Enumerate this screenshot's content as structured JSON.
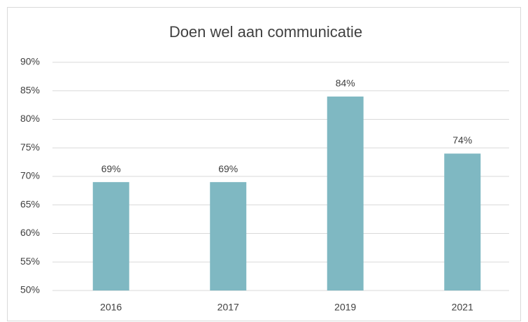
{
  "chart_data": {
    "type": "bar",
    "title": "Doen wel aan communicatie",
    "categories": [
      "2016",
      "2017",
      "2019",
      "2021"
    ],
    "values": [
      69,
      69,
      84,
      74
    ],
    "value_labels": [
      "69%",
      "69%",
      "84%",
      "74%"
    ],
    "color": "#7fb8c2",
    "ylim": [
      50,
      90
    ],
    "yticks": [
      {
        "value": 50,
        "label": "50%"
      },
      {
        "value": 55,
        "label": "55%"
      },
      {
        "value": 60,
        "label": "60%"
      },
      {
        "value": 65,
        "label": "65%"
      },
      {
        "value": 70,
        "label": "70%"
      },
      {
        "value": 75,
        "label": "75%"
      },
      {
        "value": 80,
        "label": "80%"
      },
      {
        "value": 85,
        "label": "85%"
      },
      {
        "value": 90,
        "label": "90%"
      }
    ],
    "grid": true
  }
}
